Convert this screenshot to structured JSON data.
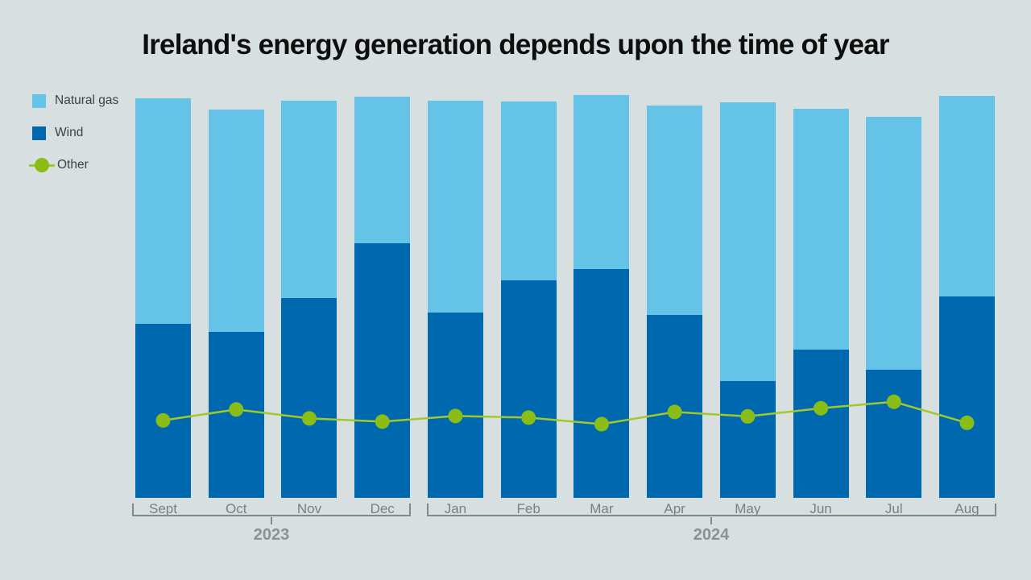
{
  "chart": {
    "title": "Ireland's energy generation depends upon the time of year",
    "legend": [
      {
        "label": "Natural gas",
        "marker": "square",
        "color": "#66c3e8"
      },
      {
        "label": "Wind",
        "marker": "square",
        "color": "#0068ae"
      },
      {
        "label": "Other",
        "marker": "line-dot",
        "color": "#8abd16"
      }
    ],
    "year_groups": [
      {
        "year": "2023",
        "from": "Sept",
        "to": "Dec"
      },
      {
        "year": "2024",
        "from": "Jan",
        "to": "Aug"
      }
    ]
  },
  "chart_data": {
    "type": "bar",
    "subtype": "stacked-bars-with-line-overlay",
    "title": "Ireland's energy generation depends upon the time of year",
    "categories": [
      "Sept",
      "Oct",
      "Nov",
      "Dec",
      "Jan",
      "Feb",
      "Mar",
      "Apr",
      "May",
      "Jun",
      "Jul",
      "Aug"
    ],
    "category_year_groups": [
      {
        "year": "2023",
        "categories": [
          "Sept",
          "Oct",
          "Nov",
          "Dec"
        ]
      },
      {
        "year": "2024",
        "categories": [
          "Jan",
          "Feb",
          "Mar",
          "Apr",
          "May",
          "Jun",
          "Jul",
          "Aug"
        ]
      }
    ],
    "series": [
      {
        "name": "Natural gas",
        "type": "bar",
        "stacked": true,
        "stack_order": "top",
        "color": "#66c3e8",
        "values": [
          55.7,
          54.9,
          48.7,
          36.3,
          52.4,
          44.2,
          43.0,
          51.7,
          68.8,
          59.5,
          62.3,
          49.6
        ]
      },
      {
        "name": "Wind",
        "type": "bar",
        "stacked": true,
        "stack_order": "bottom",
        "color": "#0068ae",
        "values": [
          42.9,
          40.9,
          49.3,
          62.8,
          45.7,
          53.6,
          56.5,
          45.1,
          28.9,
          36.5,
          31.7,
          49.7
        ]
      },
      {
        "name": "Other",
        "type": "line",
        "color": "#8abd16",
        "line_color": "#a2c92c",
        "values": [
          19.1,
          21.8,
          19.6,
          18.8,
          20.2,
          19.8,
          18.2,
          21.2,
          20.1,
          22.1,
          23.7,
          18.5
        ]
      }
    ],
    "ylim": [
      0,
      100
    ],
    "units": "relative scale 0-100 (no y-axis shown in graphic; values estimated from bar pixel heights)",
    "y_axis_visible": false,
    "grid": false,
    "legend_position": "top-left"
  }
}
